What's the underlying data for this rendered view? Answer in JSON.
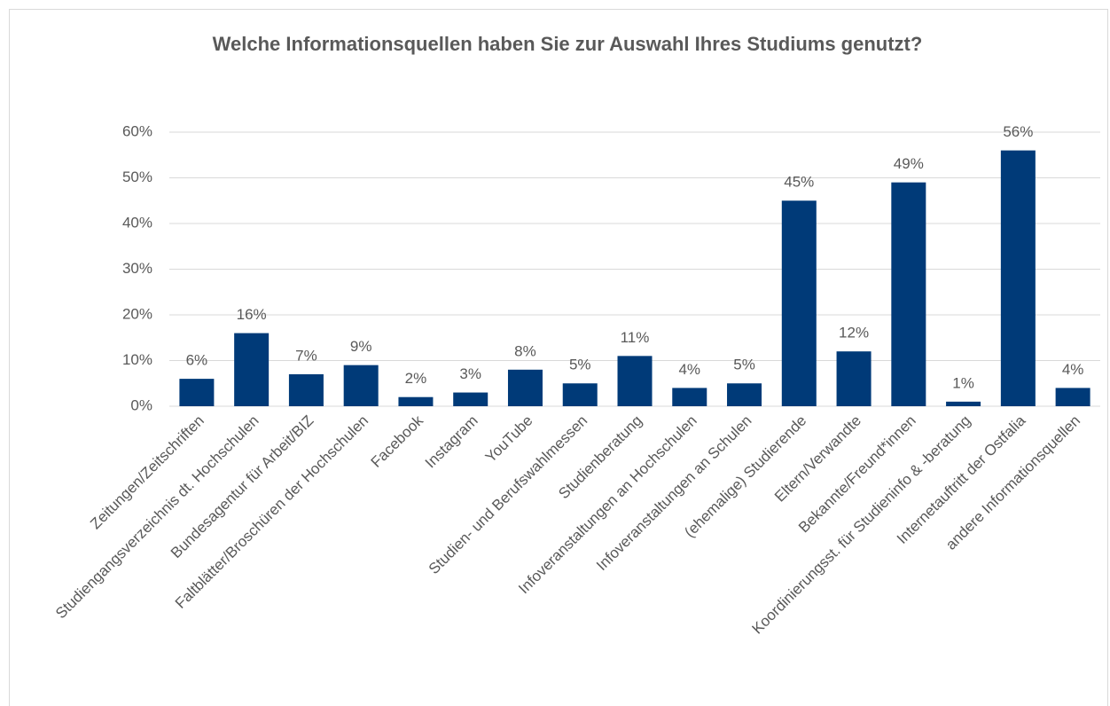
{
  "chart_data": {
    "type": "bar",
    "title": "Welche Informationsquellen haben Sie zur Auswahl Ihres Studiums genutzt?",
    "categories": [
      "Zeitungen/Zeitschriften",
      "Studiengangsverzeichnis dt. Hochschulen",
      "Bundesagentur für Arbeit/BIZ",
      "Faltblätter/Broschüren der Hochschulen",
      "Facebook",
      "Instagram",
      "YouTube",
      "Studien- und Berufswahlmessen",
      "Studienberatung",
      "Infoveranstaltungen an Hochschulen",
      "Infoveranstaltungen an Schulen",
      "(ehemalige) Studierende",
      "Eltern/Verwandte",
      "Bekannte/Freund*innen",
      "Koordinierungsst. für Studieninfo & -beratung",
      "Internetauftritt der Ostfalia",
      "andere Informationsquellen"
    ],
    "values": [
      6,
      16,
      7,
      9,
      2,
      3,
      8,
      5,
      11,
      4,
      5,
      45,
      12,
      49,
      1,
      56,
      4
    ],
    "value_labels": [
      "6%",
      "16%",
      "7%",
      "9%",
      "2%",
      "3%",
      "8%",
      "5%",
      "11%",
      "4%",
      "5%",
      "45%",
      "12%",
      "49%",
      "1%",
      "56%",
      "4%"
    ],
    "color": "#003A78",
    "ylim": [
      0,
      60
    ],
    "yticks": [
      {
        "value": 0,
        "label": "0%"
      },
      {
        "value": 10,
        "label": "10%"
      },
      {
        "value": 20,
        "label": "20%"
      },
      {
        "value": 30,
        "label": "30%"
      },
      {
        "value": 40,
        "label": "40%"
      },
      {
        "value": 50,
        "label": "50%"
      },
      {
        "value": 60,
        "label": "60%"
      }
    ],
    "grid": true
  }
}
